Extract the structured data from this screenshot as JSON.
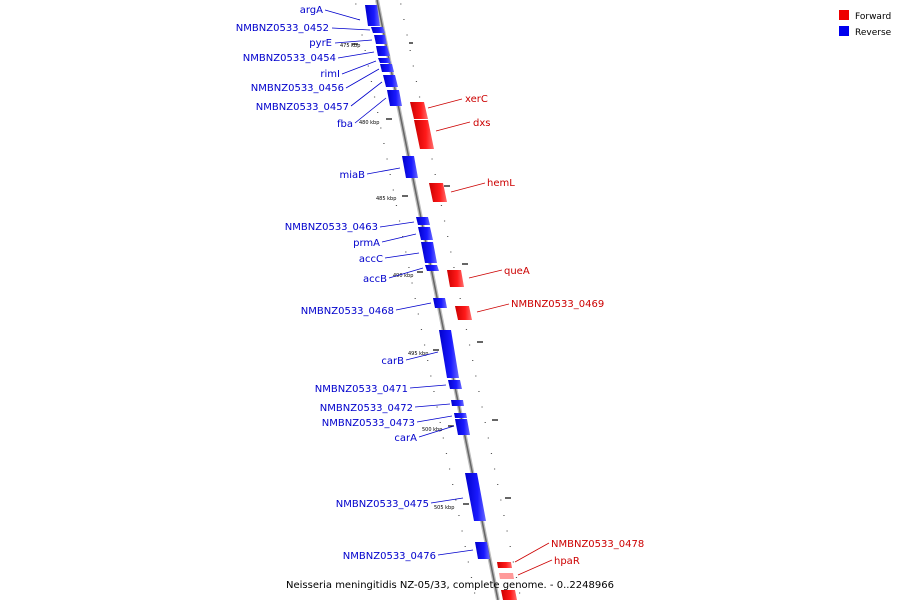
{
  "caption": "Neisseria meningitidis NZ-05/33, complete genome. - 0..2248966",
  "legend": {
    "items": [
      {
        "label": "Forward",
        "color": "#ee0000"
      },
      {
        "label": "Reverse",
        "color": "#0000ee"
      }
    ]
  },
  "tick_labels": [
    "475 kbp",
    "480 kbp",
    "485 kbp",
    "490 kbp",
    "495 kbp",
    "500 kbp",
    "505 kbp"
  ],
  "reverse_genes": [
    "argA",
    "NMBNZ0533_0452",
    "pyrE",
    "NMBNZ0533_0454",
    "rimI",
    "NMBNZ0533_0456",
    "NMBNZ0533_0457",
    "fba",
    "miaB",
    "NMBNZ0533_0463",
    "prmA",
    "accC",
    "accB",
    "NMBNZ0533_0468",
    "carB",
    "NMBNZ0533_0471",
    "NMBNZ0533_0472",
    "NMBNZ0533_0473",
    "carA",
    "NMBNZ0533_0475",
    "NMBNZ0533_0476"
  ],
  "forward_genes": [
    "xerC",
    "dxs",
    "hemL",
    "queA",
    "NMBNZ0533_0469",
    "NMBNZ0533_0478",
    "hpaR"
  ]
}
